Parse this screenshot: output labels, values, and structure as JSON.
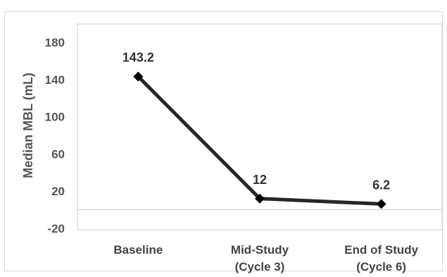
{
  "chart_data": {
    "type": "line",
    "categories": [
      [
        "Baseline"
      ],
      [
        "Mid-Study",
        "(Cycle 3)"
      ],
      [
        "End of Study",
        "(Cycle 6)"
      ]
    ],
    "values": [
      143.2,
      12,
      6.2
    ],
    "data_labels": [
      "143.2",
      "12",
      "6.2"
    ],
    "ylabel": "Median MBL (mL)",
    "ylim": [
      -20,
      180
    ],
    "yticks": [
      -20,
      20,
      60,
      100,
      140,
      180
    ],
    "grid": false,
    "line_color": "#262626",
    "marker": "diamond"
  }
}
